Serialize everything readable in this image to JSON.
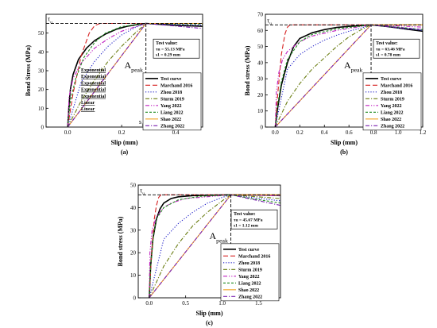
{
  "chart_data": [
    {
      "id": "a",
      "type": "line",
      "panel_label": "(a)",
      "xlabel": "Slip (mm)",
      "ylabel": "Bond Stress (MPa)",
      "xlim": [
        -0.08,
        0.5
      ],
      "ylim": [
        0,
        60
      ],
      "xticks": [
        0.0,
        0.2,
        0.4
      ],
      "yticks": [
        0,
        10,
        20,
        30,
        40,
        50
      ],
      "tau_label": "τu",
      "tau_value": 55.13,
      "s1_label": "s1",
      "s1_value": 0.29,
      "apeak_label": "Apeak",
      "test_value": {
        "title": "Test value:",
        "tau": "τu = 55.13 MPa",
        "s1": "s1 = 0.29 mm"
      },
      "legend_position": "center-right",
      "side_labels": [
        "Exponential",
        "Exponential",
        "Exponential",
        "Exponential",
        "Exponential",
        "Linear",
        "Linear"
      ],
      "series": [
        {
          "name": "Test curve",
          "color": "#000000",
          "dash": "solid",
          "x": [
            0,
            0.005,
            0.01,
            0.02,
            0.04,
            0.07,
            0.1,
            0.14,
            0.18,
            0.22,
            0.26,
            0.29,
            0.35,
            0.42,
            0.5
          ],
          "y": [
            0,
            12,
            20,
            28,
            36,
            42,
            46,
            49.5,
            52,
            53.6,
            54.6,
            55.13,
            54.6,
            54,
            53.6
          ]
        },
        {
          "name": "Marchand 2016",
          "color": "#d62020",
          "dash": "long-dash",
          "x": [
            0,
            0.02,
            0.05,
            0.08,
            0.1,
            0.12,
            0.5
          ],
          "y": [
            0,
            18,
            38,
            50,
            54,
            55.13,
            55.13
          ]
        },
        {
          "name": "Zhou 2018",
          "color": "#2020c8",
          "dash": "dot",
          "x": [
            0,
            0.05,
            0.1,
            0.15,
            0.2,
            0.25,
            0.29,
            0.35,
            0.42,
            0.5
          ],
          "y": [
            0,
            24,
            35,
            43,
            49,
            53,
            55.13,
            54.8,
            54.5,
            54.2
          ]
        },
        {
          "name": "Sturm 2019",
          "color": "#6a7d12",
          "dash": "dash-dot",
          "x": [
            0,
            0.05,
            0.1,
            0.15,
            0.2,
            0.25,
            0.29,
            0.5
          ],
          "y": [
            0,
            14,
            25,
            35,
            43,
            50,
            55.13,
            55.13
          ]
        },
        {
          "name": "Yang 2022",
          "color": "#c020c0",
          "dash": "dash-dot-dot",
          "x": [
            0,
            0.005,
            0.02,
            0.05,
            0.1,
            0.15,
            0.2,
            0.29,
            0.5
          ],
          "y": [
            0,
            16,
            26,
            34,
            42,
            47,
            51,
            55.13,
            55.13
          ]
        },
        {
          "name": "Liang 2022",
          "color": "#1f8a1f",
          "dash": "short-dash",
          "x": [
            0,
            0.01,
            0.03,
            0.06,
            0.1,
            0.14,
            0.2,
            0.29,
            0.5
          ],
          "y": [
            0,
            14,
            26,
            37,
            45,
            50,
            53.5,
            55.13,
            54.8
          ]
        },
        {
          "name": "Shao 2022",
          "color": "#f0a020",
          "dash": "solid",
          "x": [
            0,
            0.29,
            0.5
          ],
          "y": [
            0,
            55.13,
            55.13
          ]
        },
        {
          "name": "Zhang 2022",
          "color": "#7a20b0",
          "dash": "dash-dot",
          "x": [
            0,
            0.29,
            0.5
          ],
          "y": [
            0,
            55.13,
            52.5
          ]
        }
      ]
    },
    {
      "id": "b",
      "type": "line",
      "panel_label": "(b)",
      "xlabel": "Slip (mm)",
      "ylabel": "Bond stress (MPa)",
      "xlim": [
        -0.08,
        1.2
      ],
      "ylim": [
        0,
        70
      ],
      "xticks": [
        0.0,
        0.2,
        0.4,
        0.6,
        0.8,
        1.0,
        1.2
      ],
      "yticks": [
        0,
        10,
        20,
        30,
        40,
        50,
        60,
        70
      ],
      "tau_label": "τu",
      "tau_value": 63.46,
      "s1_label": "s1",
      "s1_value": 0.78,
      "apeak_label": "Apeak",
      "test_value": {
        "title": "Test value:",
        "tau": "τu = 63.46 MPa",
        "s1": "s1 = 0.78 mm"
      },
      "legend_position": "center-right",
      "series": [
        {
          "name": "Test curve",
          "color": "#000000",
          "dash": "solid",
          "x": [
            0,
            0.02,
            0.05,
            0.1,
            0.15,
            0.2,
            0.3,
            0.4,
            0.5,
            0.6,
            0.7,
            0.78,
            0.9,
            1.0,
            1.1,
            1.2
          ],
          "y": [
            0,
            12,
            26,
            40,
            50,
            55,
            58.5,
            60.5,
            61.8,
            62.5,
            63,
            63.46,
            62.5,
            61.5,
            60.5,
            59.5
          ]
        },
        {
          "name": "Marchand 2016",
          "color": "#d62020",
          "dash": "long-dash",
          "x": [
            0,
            0.02,
            0.05,
            0.08,
            0.1,
            0.12,
            1.2
          ],
          "y": [
            0,
            20,
            45,
            58,
            62,
            63.46,
            63.46
          ]
        },
        {
          "name": "Zhou 2018",
          "color": "#2020c8",
          "dash": "dot",
          "x": [
            0,
            0.1,
            0.2,
            0.3,
            0.4,
            0.5,
            0.6,
            0.7,
            0.78,
            0.9,
            1.0,
            1.2
          ],
          "y": [
            0,
            36,
            45,
            50,
            54,
            57,
            59.5,
            61.5,
            63.46,
            62.5,
            61.5,
            60
          ]
        },
        {
          "name": "Sturm 2019",
          "color": "#6a7d12",
          "dash": "dash-dot",
          "x": [
            0,
            0.1,
            0.2,
            0.3,
            0.4,
            0.5,
            0.6,
            0.7,
            0.78,
            1.2
          ],
          "y": [
            0,
            16,
            27,
            36,
            43,
            50,
            56,
            60.5,
            63.46,
            63.46
          ]
        },
        {
          "name": "Yang 2022",
          "color": "#c020c0",
          "dash": "dash-dot-dot",
          "x": [
            0,
            0.01,
            0.03,
            0.06,
            0.1,
            0.2,
            0.3,
            0.5,
            0.78,
            1.0,
            1.2
          ],
          "y": [
            0,
            22,
            34,
            42,
            47,
            53,
            56.5,
            60,
            63.46,
            62.8,
            62
          ]
        },
        {
          "name": "Liang 2022",
          "color": "#1f8a1f",
          "dash": "short-dash",
          "x": [
            0,
            0.02,
            0.05,
            0.1,
            0.2,
            0.3,
            0.5,
            0.78,
            1.0,
            1.2
          ],
          "y": [
            0,
            14,
            28,
            42,
            53,
            57.5,
            61,
            63.46,
            62,
            60.5
          ]
        },
        {
          "name": "Shao 2022",
          "color": "#f0a020",
          "dash": "solid",
          "x": [
            0,
            0.78,
            1.2
          ],
          "y": [
            0,
            63.46,
            63.46
          ]
        },
        {
          "name": "Zhang 2022",
          "color": "#7a20b0",
          "dash": "dash-dot",
          "x": [
            0,
            0.78,
            1.2
          ],
          "y": [
            0,
            63.46,
            60.5
          ]
        }
      ]
    },
    {
      "id": "c",
      "type": "line",
      "panel_label": "(c)",
      "xlabel": "Slip (mm)",
      "ylabel": "Bond stress (MPa)",
      "xlim": [
        -0.15,
        1.8
      ],
      "ylim": [
        0,
        50
      ],
      "xticks": [
        0.0,
        0.5,
        1.0,
        1.5
      ],
      "yticks": [
        0,
        10,
        20,
        30,
        40,
        50
      ],
      "tau_label": "τu",
      "tau_value": 45.67,
      "s1_label": "s1",
      "s1_value": 1.12,
      "apeak_label": "Apeak",
      "test_value": {
        "title": "Test value:",
        "tau": "τu = 45.67 MPa",
        "s1": "s1 = 1.12 mm"
      },
      "legend_position": "center-right",
      "series": [
        {
          "name": "Test curve",
          "color": "#000000",
          "dash": "solid",
          "x": [
            0,
            0.02,
            0.05,
            0.1,
            0.15,
            0.2,
            0.3,
            0.4,
            0.6,
            0.8,
            1.0,
            1.12,
            1.4,
            1.8
          ],
          "y": [
            0,
            14,
            26,
            35,
            39.5,
            42,
            44,
            44.8,
            45.3,
            45.5,
            45.6,
            45.67,
            45.6,
            45.5
          ]
        },
        {
          "name": "Marchand 2016",
          "color": "#d62020",
          "dash": "long-dash",
          "x": [
            0,
            0.03,
            0.07,
            0.1,
            0.13,
            0.16,
            1.8
          ],
          "y": [
            0,
            18,
            35,
            41,
            44.5,
            45.67,
            45.67
          ]
        },
        {
          "name": "Zhou 2018",
          "color": "#2020c8",
          "dash": "dot",
          "x": [
            0,
            0.2,
            0.4,
            0.6,
            0.8,
            1.0,
            1.12,
            1.4,
            1.8
          ],
          "y": [
            0,
            26,
            33,
            38,
            42,
            44.5,
            45.67,
            44.5,
            43
          ]
        },
        {
          "name": "Sturm 2019",
          "color": "#6a7d12",
          "dash": "dash-dot",
          "x": [
            0,
            0.2,
            0.4,
            0.6,
            0.8,
            1.0,
            1.12,
            1.4,
            1.8
          ],
          "y": [
            0,
            14,
            24,
            32,
            38,
            43,
            45.67,
            45,
            44
          ]
        },
        {
          "name": "Yang 2022",
          "color": "#c020c0",
          "dash": "dash-dot-dot",
          "x": [
            0,
            0.01,
            0.04,
            0.1,
            0.2,
            0.3,
            0.5,
            1.12,
            1.4,
            1.8
          ],
          "y": [
            0,
            20,
            30,
            36,
            40,
            42,
            44,
            45.67,
            45.5,
            45.2
          ]
        },
        {
          "name": "Liang 2022",
          "color": "#1f8a1f",
          "dash": "short-dash",
          "x": [
            0,
            0.02,
            0.06,
            0.1,
            0.2,
            0.4,
            0.7,
            1.12,
            1.4,
            1.8
          ],
          "y": [
            0,
            14,
            28,
            35,
            40,
            43.5,
            45,
            45.67,
            44,
            42
          ]
        },
        {
          "name": "Shao 2022",
          "color": "#f0a020",
          "dash": "solid",
          "x": [
            0,
            1.12,
            1.8
          ],
          "y": [
            0,
            45.67,
            45.67
          ]
        },
        {
          "name": "Zhang 2022",
          "color": "#7a20b0",
          "dash": "dash-dot",
          "x": [
            0,
            1.12,
            1.8
          ],
          "y": [
            0,
            45.67,
            41
          ]
        }
      ]
    }
  ]
}
